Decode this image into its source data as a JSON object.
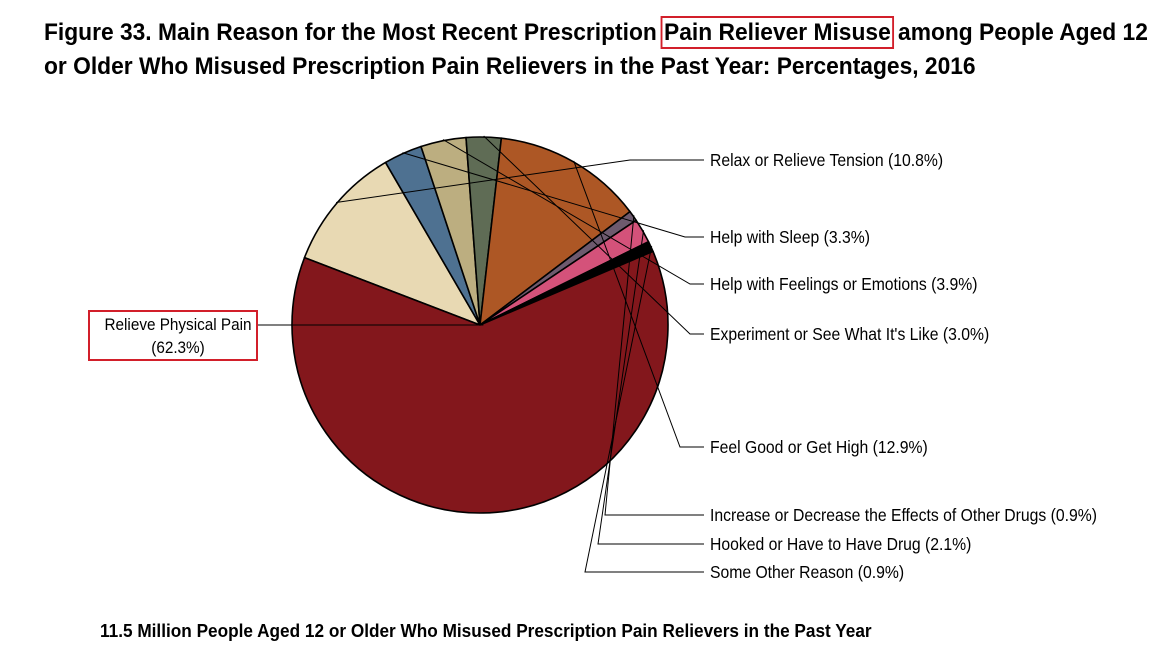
{
  "figure": {
    "title_before": "Figure 33. Main Reason for the Most Recent Prescription",
    "title_highlight": "Pain Reliever Misuse",
    "title_after": "among People Aged 12",
    "title_line2": "or Older Who Misused Prescription Pain Relievers in the Past Year: Percentages, 2016",
    "footnote": "11.5 Million People Aged 12 or Older Who Misused Prescription Pain Relievers in the Past Year",
    "highlight_color": "#d21f2a"
  },
  "chart_data": {
    "type": "pie",
    "title": "Main Reason for the Most Recent Prescription Pain Reliever Misuse among People Aged 12 or Older Who Misused Prescription Pain Relievers in the Past Year: Percentages, 2016",
    "unit": "%",
    "slices": [
      {
        "id": "relax",
        "label": "Relax or Relieve Tension",
        "value_label": "(10.8%)",
        "value": 10.8,
        "color": "#e8d9b3"
      },
      {
        "id": "sleep",
        "label": "Help with Sleep",
        "value_label": "(3.3%)",
        "value": 3.3,
        "color": "#4e7191"
      },
      {
        "id": "feelings",
        "label": "Help with Feelings or Emotions",
        "value_label": "(3.9%)",
        "value": 3.9,
        "color": "#bcae80"
      },
      {
        "id": "experiment",
        "label": "Experiment or See What It's Like",
        "value_label": "(3.0%)",
        "value": 3.0,
        "color": "#5f6c55"
      },
      {
        "id": "high",
        "label": "Feel Good or Get High",
        "value_label": "(12.9%)",
        "value": 12.9,
        "color": "#ad5725"
      },
      {
        "id": "effects",
        "label": "Increase or Decrease the Effects of Other Drugs",
        "value_label": "(0.9%)",
        "value": 0.9,
        "color": "#6e5a6e"
      },
      {
        "id": "hooked",
        "label": "Hooked or Have to Have Drug",
        "value_label": "(2.1%)",
        "value": 2.1,
        "color": "#d4527a"
      },
      {
        "id": "other",
        "label": "Some Other Reason",
        "value_label": "(0.9%)",
        "value": 0.9,
        "color": "#000000"
      },
      {
        "id": "pain",
        "label": "Relieve Physical Pain",
        "value_label": "(62.3%)",
        "value": 62.3,
        "color": "#83171c",
        "highlighted": true
      }
    ]
  }
}
